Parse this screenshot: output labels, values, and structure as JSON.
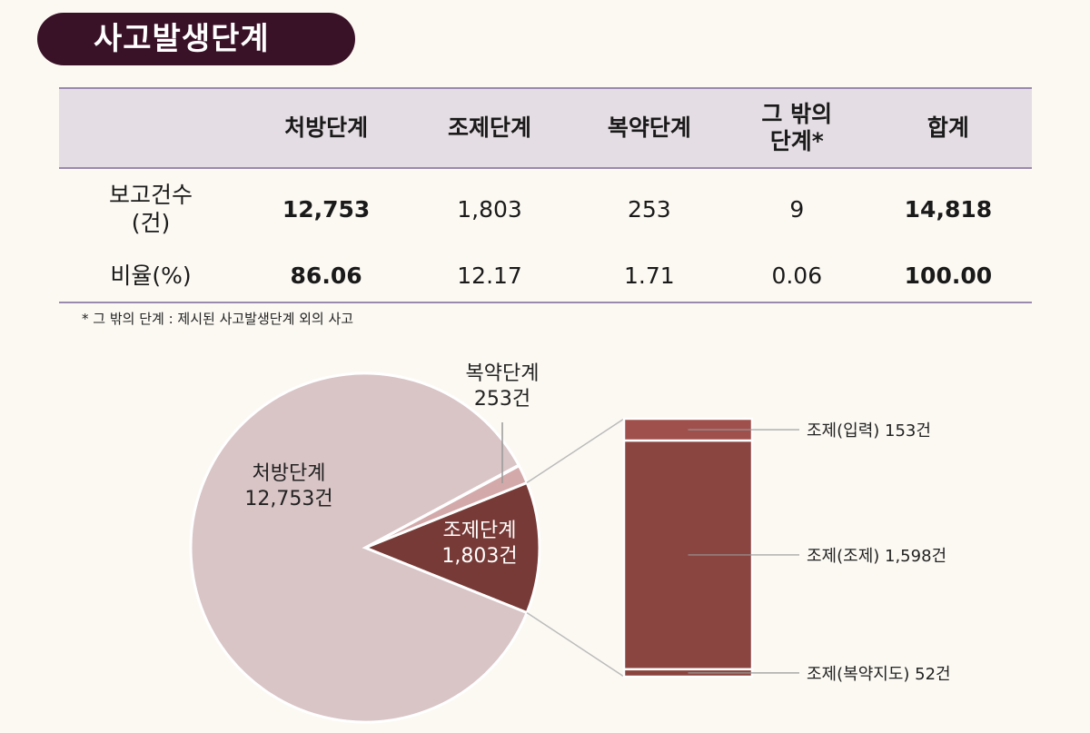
{
  "title": "사고발생단계",
  "table": {
    "headers": [
      "",
      "처방단계",
      "조제단계",
      "복약단계",
      "그 밖의 단계*",
      "합계"
    ],
    "header_lines": [
      [
        ""
      ],
      [
        "처방단계"
      ],
      [
        "조제단계"
      ],
      [
        "복약단계"
      ],
      [
        "그 밖의",
        "단계*"
      ],
      [
        "합계"
      ]
    ],
    "rows": [
      {
        "label_lines": [
          "보고건수",
          "(건)"
        ],
        "values": [
          "12,753",
          "1,803",
          "253",
          "9",
          "14,818"
        ]
      },
      {
        "label_lines": [
          "비율(%)"
        ],
        "values": [
          "86.06",
          "12.17",
          "1.71",
          "0.06",
          "100.00"
        ]
      }
    ]
  },
  "note": "* 그 밖의 단계 : 제시된 사고발생단계 외의 사고",
  "colors": {
    "title_bg": "#3a1228",
    "header_bg": "#e4dde3",
    "rule": "#9b8ab0",
    "prescribe": "#d9c4c6",
    "medication": "#d3a9aa",
    "dispense": "#773a36",
    "bar": "#8b4540",
    "bar_top": "#a0504c"
  },
  "chart_data": {
    "type": "pie-of-bar",
    "pie": [
      {
        "name": "조제단계",
        "value": 1803,
        "label": [
          "조제단계",
          "1,803건"
        ]
      },
      {
        "name": "복약단계",
        "value": 253,
        "label": [
          "복약단계",
          "253건"
        ]
      },
      {
        "name": "그 밖의 단계",
        "value": 9
      },
      {
        "name": "처방단계",
        "value": 12753,
        "label": [
          "처방단계",
          "12,753건"
        ]
      }
    ],
    "bar": [
      {
        "name": "조제(입력)",
        "value": 153,
        "label": "조제(입력) 153건"
      },
      {
        "name": "조제(조제)",
        "value": 1598,
        "label": "조제(조제) 1,598건"
      },
      {
        "name": "조제(복약지도)",
        "value": 52,
        "label": "조제(복약지도) 52건"
      }
    ]
  }
}
